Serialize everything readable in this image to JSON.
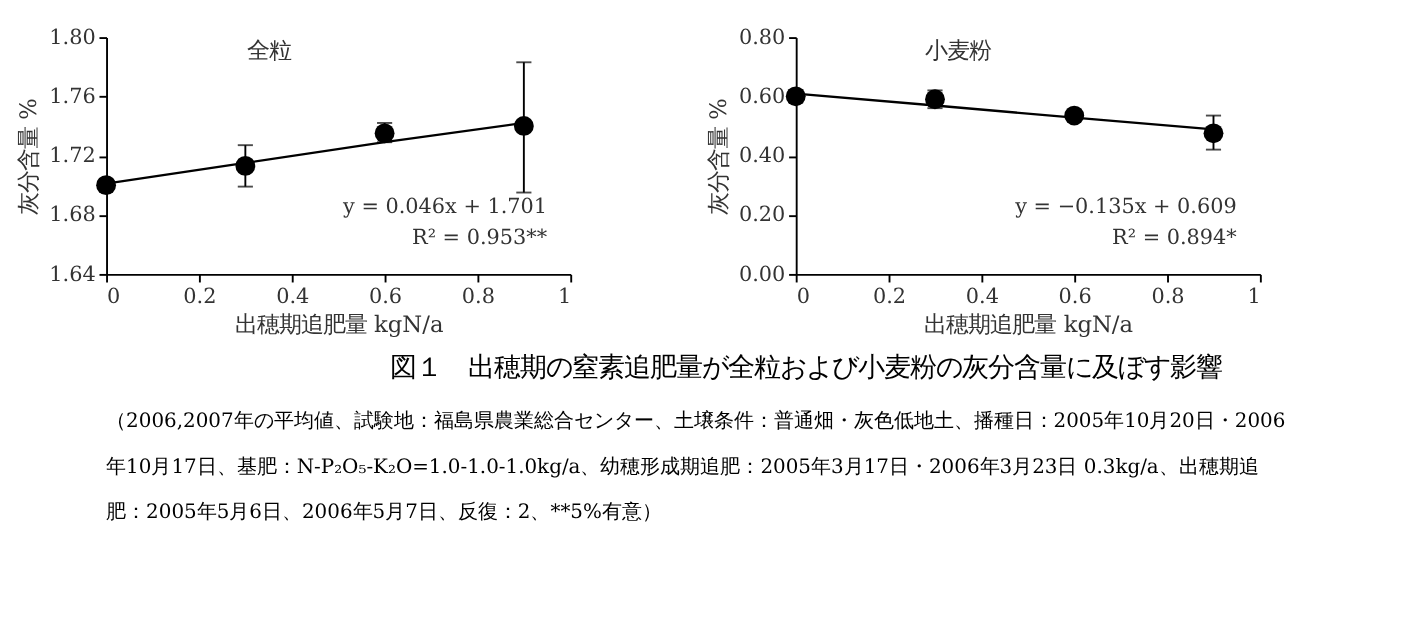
{
  "chart_data": [
    {
      "type": "scatter",
      "title": "全粒",
      "xlabel": "出穂期追肥量  kgN/a",
      "ylabel": "灰分含量 %",
      "x": [
        0,
        0.3,
        0.6,
        0.9
      ],
      "xlim": [
        0,
        1
      ],
      "xticks": [
        0,
        0.2,
        0.4,
        0.6,
        0.8,
        1
      ],
      "ylim": [
        1.64,
        1.8
      ],
      "yticks": [
        {
          "value": 1.64,
          "label": "1.64"
        },
        {
          "value": 1.68,
          "label": "1.68"
        },
        {
          "value": 1.72,
          "label": "1.72"
        },
        {
          "value": 1.76,
          "label": "1.76"
        },
        {
          "value": 1.8,
          "label": "1.80"
        }
      ],
      "marker": "circle",
      "grid": false,
      "series": [
        {
          "type": "scatter",
          "color": "#000000",
          "values": [
            1.7,
            1.713,
            1.735,
            1.74
          ],
          "errors": [
            null,
            [
              1.699,
              1.727
            ],
            [
              1.729,
              1.742
            ],
            [
              1.695,
              1.783
            ]
          ]
        },
        {
          "type": "line",
          "color": "#000000",
          "values": [
            1.701,
            1.715,
            1.729,
            1.742
          ],
          "marker": "none",
          "line_style": "solid"
        }
      ],
      "annotations": [
        "y = 0.046x + 1.701",
        "R² = 0.953**"
      ]
    },
    {
      "type": "scatter",
      "title": "小麦粉",
      "xlabel": "出穂期追肥量  kgN/a",
      "ylabel": "灰分含量 %",
      "x": [
        0,
        0.3,
        0.6,
        0.9
      ],
      "xlim": [
        0,
        1
      ],
      "xticks": [
        0,
        0.2,
        0.4,
        0.6,
        0.8,
        1
      ],
      "ylim": [
        0,
        0.8
      ],
      "yticks": [
        {
          "value": 0,
          "label": "0.00"
        },
        {
          "value": 0.2,
          "label": "0.20"
        },
        {
          "value": 0.4,
          "label": "0.40"
        },
        {
          "value": 0.6,
          "label": "0.60"
        },
        {
          "value": 0.8,
          "label": "0.80"
        }
      ],
      "marker": "circle",
      "grid": false,
      "series": [
        {
          "type": "scatter",
          "color": "#000000",
          "values": [
            0.6,
            0.59,
            0.535,
            0.475
          ],
          "errors": [
            [
              0.58,
              0.62
            ],
            [
              0.56,
              0.62
            ],
            null,
            [
              0.42,
              0.535
            ]
          ]
        },
        {
          "type": "line",
          "color": "#000000",
          "values": [
            0.609,
            0.569,
            0.528,
            0.488
          ],
          "marker": "none",
          "line_style": "solid"
        }
      ],
      "annotations": [
        "y = −0.135x + 0.609",
        "R² = 0.894*"
      ]
    },
    {
      "type": "other",
      "title": "図１　出穂期の窒素追肥量が全粒および小麦粉の灰分含量に及ぼす影響",
      "annotations": [
        "（2006,2007年の平均値、試験地：福島県農業総合センター、土壌条件：普通畑・灰色低地土、播種日：2005年10月20日・2006",
        "年10月17日、基肥：N-P₂O₅-K₂O=1.0-1.0-1.0kg/a、幼穂形成期追肥：2005年3月17日・2006年3月23日 0.3kg/a、出穂期追",
        "肥：2005年5月6日、2006年5月7日、反復：2、**5%有意）"
      ]
    }
  ]
}
